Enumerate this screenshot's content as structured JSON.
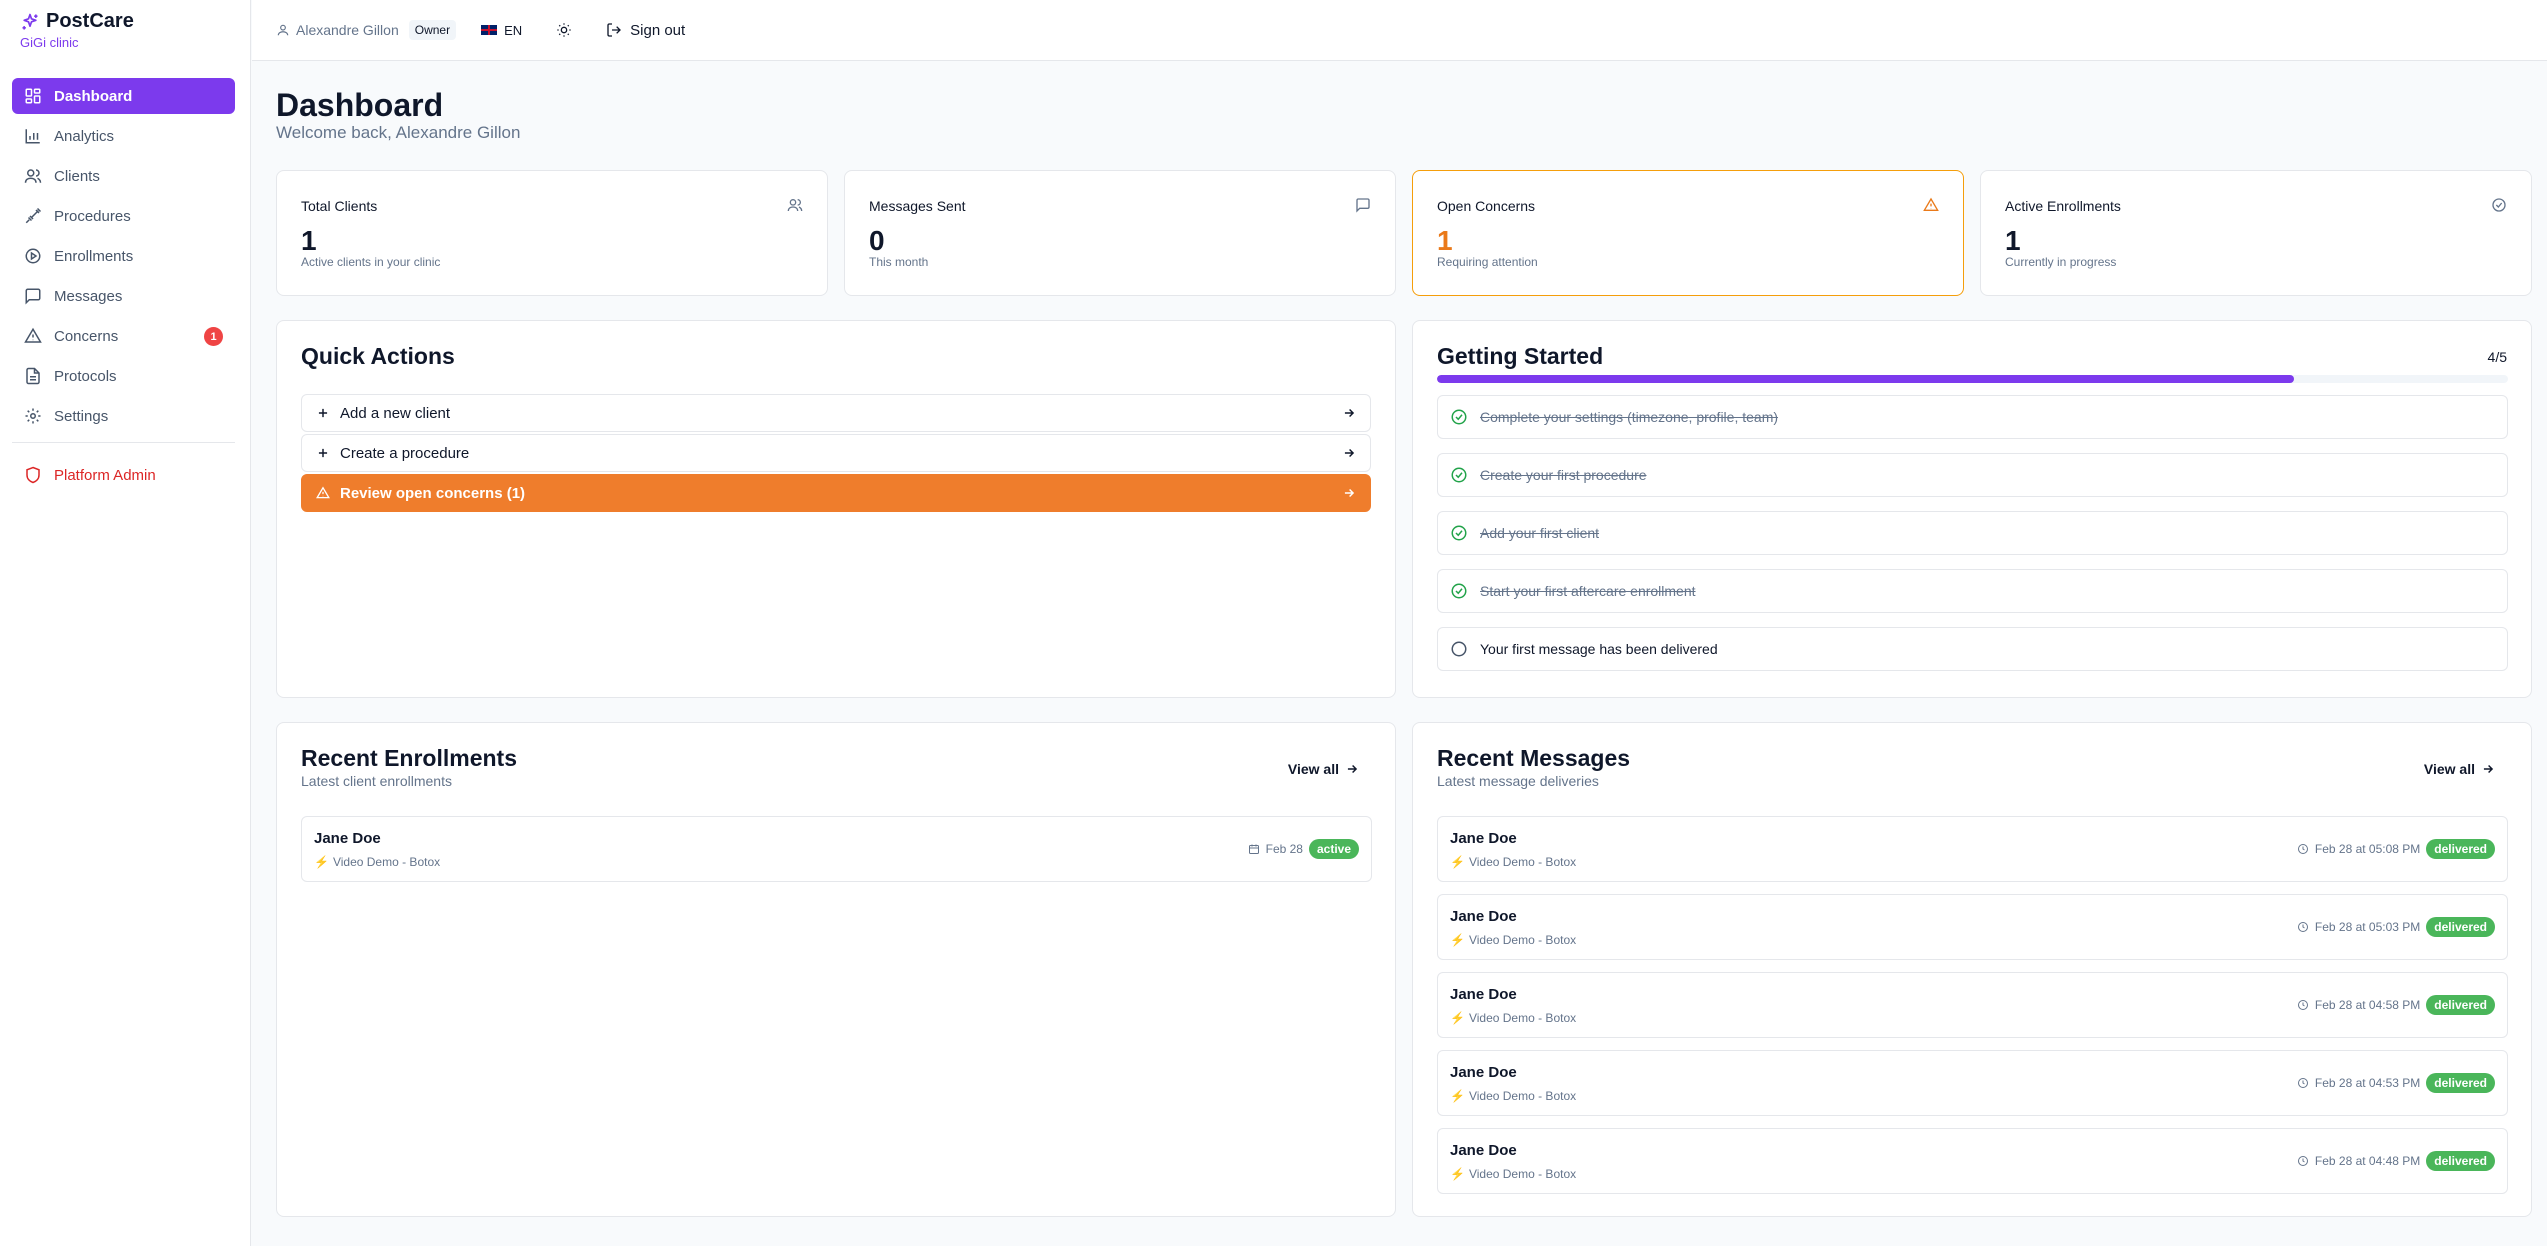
{
  "brand": {
    "name": "PostCare",
    "clinic": "GiGi clinic"
  },
  "sidebar": {
    "items": [
      {
        "label": "Dashboard",
        "icon": "dashboard-icon",
        "active": true
      },
      {
        "label": "Analytics",
        "icon": "bar-chart-icon"
      },
      {
        "label": "Clients",
        "icon": "users-icon"
      },
      {
        "label": "Procedures",
        "icon": "syringe-icon"
      },
      {
        "label": "Enrollments",
        "icon": "play-circle-icon"
      },
      {
        "label": "Messages",
        "icon": "message-icon"
      },
      {
        "label": "Concerns",
        "icon": "alert-triangle-icon",
        "badge": "1"
      },
      {
        "label": "Protocols",
        "icon": "document-icon"
      },
      {
        "label": "Settings",
        "icon": "gear-icon"
      }
    ],
    "admin": {
      "label": "Platform Admin",
      "icon": "shield-icon"
    }
  },
  "topbar": {
    "user": "Alexandre Gillon",
    "role": "Owner",
    "lang": "EN",
    "signout": "Sign out"
  },
  "page": {
    "title": "Dashboard",
    "subtitle": "Welcome back, Alexandre Gillon"
  },
  "stats": [
    {
      "label": "Total Clients",
      "value": "1",
      "note": "Active clients in your clinic",
      "icon": "users-icon"
    },
    {
      "label": "Messages Sent",
      "value": "0",
      "note": "This month",
      "icon": "message-icon"
    },
    {
      "label": "Open Concerns",
      "value": "1",
      "note": "Requiring attention",
      "icon": "alert-triangle-icon"
    },
    {
      "label": "Active Enrollments",
      "value": "1",
      "note": "Currently in progress",
      "icon": "check-circle-icon"
    }
  ],
  "quick_actions": {
    "title": "Quick Actions",
    "items": [
      {
        "label": "Add a new client"
      },
      {
        "label": "Create a procedure"
      },
      {
        "label": "Review open concerns (1)"
      }
    ]
  },
  "getting_started": {
    "title": "Getting Started",
    "count": "4/5",
    "progress": 0.8,
    "items": [
      {
        "label": "Complete your settings (timezone, profile, team)",
        "done": true
      },
      {
        "label": "Create your first procedure",
        "done": true
      },
      {
        "label": "Add your first client",
        "done": true
      },
      {
        "label": "Start your first aftercare enrollment",
        "done": true
      },
      {
        "label": "Your first message has been delivered",
        "done": false
      }
    ]
  },
  "recent_enrollments": {
    "title": "Recent Enrollments",
    "subtitle": "Latest client enrollments",
    "view_all": "View all",
    "rows": [
      {
        "name": "Jane Doe",
        "procedure": "Video Demo - Botox",
        "date": "Feb 28",
        "status": "active"
      }
    ]
  },
  "recent_messages": {
    "title": "Recent Messages",
    "subtitle": "Latest message deliveries",
    "view_all": "View all",
    "rows": [
      {
        "name": "Jane Doe",
        "procedure": "Video Demo - Botox",
        "time": "Feb 28 at 05:08 PM",
        "status": "delivered"
      },
      {
        "name": "Jane Doe",
        "procedure": "Video Demo - Botox",
        "time": "Feb 28 at 05:03 PM",
        "status": "delivered"
      },
      {
        "name": "Jane Doe",
        "procedure": "Video Demo - Botox",
        "time": "Feb 28 at 04:58 PM",
        "status": "delivered"
      },
      {
        "name": "Jane Doe",
        "procedure": "Video Demo - Botox",
        "time": "Feb 28 at 04:53 PM",
        "status": "delivered"
      },
      {
        "name": "Jane Doe",
        "procedure": "Video Demo - Botox",
        "time": "Feb 28 at 04:48 PM",
        "status": "delivered"
      }
    ]
  },
  "colors": {
    "accent": "#7c3aed",
    "warning": "#ef7d2c",
    "success": "#4ab65a",
    "danger": "#ef4444"
  }
}
